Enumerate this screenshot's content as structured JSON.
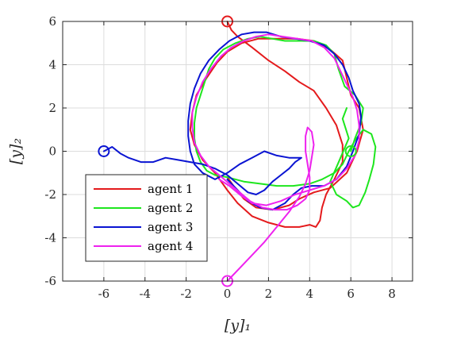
{
  "chart_data": {
    "type": "line",
    "title": "",
    "xlabel": "[y]₁",
    "ylabel": "[y]₂",
    "xlim": [
      -8,
      9
    ],
    "ylim": [
      -6,
      6
    ],
    "x_ticks": [
      -6,
      -4,
      -2,
      0,
      2,
      4,
      6,
      8
    ],
    "y_ticks": [
      -6,
      -4,
      -2,
      0,
      2,
      4,
      6
    ],
    "grid": true,
    "legend_position": "bottom-left",
    "markers": [
      {
        "x": 0,
        "y": 6,
        "color": "#e41a1c"
      },
      {
        "x": 6,
        "y": 0,
        "color": "#1ee61e"
      },
      {
        "x": -6,
        "y": 0,
        "color": "#0a14d2"
      },
      {
        "x": 0,
        "y": -6,
        "color": "#ee22ee"
      }
    ],
    "series": [
      {
        "name": "agent 1",
        "color": "#e41a1c",
        "points": [
          [
            0,
            6
          ],
          [
            0.2,
            5.6
          ],
          [
            0.5,
            5.3
          ],
          [
            1.2,
            4.8
          ],
          [
            2.0,
            4.2
          ],
          [
            2.8,
            3.7
          ],
          [
            3.5,
            3.2
          ],
          [
            4.2,
            2.8
          ],
          [
            4.8,
            2.0
          ],
          [
            5.3,
            1.2
          ],
          [
            5.6,
            0.3
          ],
          [
            5.6,
            -0.5
          ],
          [
            5.2,
            -1.3
          ],
          [
            4.8,
            -2.0
          ],
          [
            4.6,
            -2.6
          ],
          [
            4.5,
            -3.2
          ],
          [
            4.3,
            -3.5
          ],
          [
            4.0,
            -3.4
          ],
          [
            3.5,
            -3.5
          ],
          [
            2.8,
            -3.5
          ],
          [
            2.0,
            -3.3
          ],
          [
            1.2,
            -3.0
          ],
          [
            0.5,
            -2.4
          ],
          [
            0,
            -1.8
          ],
          [
            -0.6,
            -1.0
          ],
          [
            -1.2,
            -0.4
          ],
          [
            -1.6,
            0.3
          ],
          [
            -1.8,
            1.0
          ],
          [
            -1.7,
            1.8
          ],
          [
            -1.5,
            2.6
          ],
          [
            -1.0,
            3.4
          ],
          [
            -0.5,
            4.1
          ],
          [
            0,
            4.6
          ],
          [
            0.7,
            5.0
          ],
          [
            1.5,
            5.2
          ],
          [
            2.5,
            5.2
          ],
          [
            3.4,
            5.2
          ],
          [
            4.2,
            5.1
          ],
          [
            5.0,
            4.7
          ],
          [
            5.6,
            4.2
          ],
          [
            5.8,
            3.4
          ],
          [
            6.0,
            2.6
          ],
          [
            6.4,
            2.0
          ],
          [
            6.6,
            1.0
          ],
          [
            6.3,
            0
          ],
          [
            5.8,
            -1.0
          ],
          [
            5.0,
            -1.7
          ],
          [
            4.2,
            -1.9
          ],
          [
            3.5,
            -2.2
          ],
          [
            3.0,
            -2.5
          ],
          [
            2.2,
            -2.7
          ],
          [
            1.4,
            -2.6
          ],
          [
            0.8,
            -2.2
          ],
          [
            0.3,
            -1.6
          ],
          [
            0,
            -1.2
          ]
        ]
      },
      {
        "name": "agent 2",
        "color": "#1ee61e",
        "points": [
          [
            6,
            0
          ],
          [
            6.2,
            0.6
          ],
          [
            6.5,
            1.3
          ],
          [
            6.6,
            2.0
          ],
          [
            6.2,
            2.6
          ],
          [
            5.7,
            3.0
          ],
          [
            5.4,
            3.8
          ],
          [
            5.2,
            4.5
          ],
          [
            4.8,
            4.9
          ],
          [
            4.2,
            5.1
          ],
          [
            3.5,
            5.1
          ],
          [
            2.8,
            5.1
          ],
          [
            2.2,
            5.2
          ],
          [
            1.6,
            5.3
          ],
          [
            1.0,
            5.2
          ],
          [
            0.4,
            5.0
          ],
          [
            -0.2,
            4.7
          ],
          [
            -0.6,
            4.3
          ],
          [
            -0.9,
            3.8
          ],
          [
            -1.1,
            3.2
          ],
          [
            -1.3,
            2.6
          ],
          [
            -1.5,
            2.0
          ],
          [
            -1.6,
            1.3
          ],
          [
            -1.6,
            0.6
          ],
          [
            -1.5,
            0
          ],
          [
            -1.3,
            -0.5
          ],
          [
            -1.0,
            -0.9
          ],
          [
            -0.6,
            -1.1
          ],
          [
            0,
            -1.2
          ],
          [
            0.8,
            -1.4
          ],
          [
            1.6,
            -1.5
          ],
          [
            2.4,
            -1.6
          ],
          [
            3.2,
            -1.6
          ],
          [
            4.0,
            -1.5
          ],
          [
            4.6,
            -1.3
          ],
          [
            5.2,
            -1.0
          ],
          [
            5.6,
            -0.6
          ],
          [
            5.9,
            0
          ],
          [
            6.2,
            0.5
          ],
          [
            6.6,
            1.0
          ],
          [
            7.0,
            0.8
          ],
          [
            7.2,
            0.2
          ],
          [
            7.1,
            -0.6
          ],
          [
            6.9,
            -1.3
          ],
          [
            6.7,
            -1.9
          ],
          [
            6.4,
            -2.5
          ],
          [
            6.1,
            -2.6
          ],
          [
            5.8,
            -2.3
          ],
          [
            5.3,
            -2.0
          ],
          [
            5.0,
            -1.4
          ],
          [
            5.5,
            -0.3
          ],
          [
            5.9,
            0.6
          ],
          [
            5.6,
            1.5
          ],
          [
            5.8,
            2.0
          ]
        ]
      },
      {
        "name": "agent 3",
        "color": "#0a14d2",
        "points": [
          [
            -6,
            0
          ],
          [
            -5.6,
            0.2
          ],
          [
            -5.2,
            -0.1
          ],
          [
            -4.8,
            -0.3
          ],
          [
            -4.2,
            -0.5
          ],
          [
            -3.6,
            -0.5
          ],
          [
            -3.0,
            -0.3
          ],
          [
            -2.4,
            -0.4
          ],
          [
            -1.8,
            -0.5
          ],
          [
            -1.2,
            -0.6
          ],
          [
            -0.6,
            -0.8
          ],
          [
            0,
            -1.1
          ],
          [
            0.5,
            -1.5
          ],
          [
            1.0,
            -1.9
          ],
          [
            1.4,
            -2.0
          ],
          [
            1.8,
            -1.8
          ],
          [
            2.2,
            -1.4
          ],
          [
            2.6,
            -1.1
          ],
          [
            3.0,
            -0.8
          ],
          [
            3.3,
            -0.5
          ],
          [
            3.6,
            -0.3
          ],
          [
            3.0,
            -0.3
          ],
          [
            2.4,
            -0.2
          ],
          [
            1.8,
            0
          ],
          [
            1.2,
            -0.3
          ],
          [
            0.6,
            -0.6
          ],
          [
            0,
            -1.0
          ],
          [
            -0.6,
            -1.3
          ],
          [
            -1.2,
            -1.0
          ],
          [
            -1.6,
            -0.6
          ],
          [
            -1.8,
            0
          ],
          [
            -1.9,
            0.7
          ],
          [
            -1.9,
            1.4
          ],
          [
            -1.8,
            2.2
          ],
          [
            -1.6,
            2.9
          ],
          [
            -1.3,
            3.6
          ],
          [
            -0.9,
            4.2
          ],
          [
            -0.4,
            4.7
          ],
          [
            0.1,
            5.1
          ],
          [
            0.7,
            5.4
          ],
          [
            1.3,
            5.5
          ],
          [
            1.9,
            5.5
          ],
          [
            2.6,
            5.3
          ],
          [
            3.3,
            5.2
          ],
          [
            4.0,
            5.1
          ],
          [
            4.7,
            4.9
          ],
          [
            5.2,
            4.5
          ],
          [
            5.6,
            4.0
          ],
          [
            5.9,
            3.4
          ],
          [
            6.1,
            2.8
          ],
          [
            6.4,
            2.2
          ],
          [
            6.5,
            1.6
          ],
          [
            6.4,
            0.8
          ],
          [
            6.1,
            0
          ],
          [
            5.8,
            -0.7
          ],
          [
            5.3,
            -1.3
          ],
          [
            4.7,
            -1.6
          ],
          [
            4.1,
            -1.6
          ],
          [
            3.6,
            -1.7
          ],
          [
            3.2,
            -2.0
          ],
          [
            2.8,
            -2.4
          ],
          [
            2.2,
            -2.7
          ],
          [
            1.6,
            -2.6
          ],
          [
            1.0,
            -2.3
          ],
          [
            0.5,
            -1.8
          ],
          [
            0,
            -1.3
          ]
        ]
      },
      {
        "name": "agent 4",
        "color": "#ee22ee",
        "points": [
          [
            0,
            -6
          ],
          [
            0.6,
            -5.4
          ],
          [
            1.2,
            -4.8
          ],
          [
            1.8,
            -4.2
          ],
          [
            2.4,
            -3.5
          ],
          [
            3.0,
            -2.8
          ],
          [
            3.5,
            -2.1
          ],
          [
            3.8,
            -1.5
          ],
          [
            4.0,
            -0.9
          ],
          [
            4.1,
            -0.3
          ],
          [
            4.2,
            0.3
          ],
          [
            4.1,
            0.9
          ],
          [
            3.9,
            1.1
          ],
          [
            3.8,
            0.7
          ],
          [
            3.8,
            0
          ],
          [
            3.9,
            -0.6
          ],
          [
            4.0,
            -1.2
          ],
          [
            4.0,
            -1.8
          ],
          [
            3.8,
            -2.2
          ],
          [
            3.4,
            -2.5
          ],
          [
            2.9,
            -2.7
          ],
          [
            2.3,
            -2.7
          ],
          [
            1.7,
            -2.6
          ],
          [
            1.1,
            -2.3
          ],
          [
            0.6,
            -1.9
          ],
          [
            0.1,
            -1.5
          ],
          [
            -0.4,
            -1.1
          ],
          [
            -0.9,
            -0.7
          ],
          [
            -1.3,
            -0.2
          ],
          [
            -1.6,
            0.4
          ],
          [
            -1.7,
            1.1
          ],
          [
            -1.7,
            1.8
          ],
          [
            -1.5,
            2.5
          ],
          [
            -1.2,
            3.2
          ],
          [
            -0.8,
            3.8
          ],
          [
            -0.3,
            4.4
          ],
          [
            0.2,
            4.8
          ],
          [
            0.8,
            5.1
          ],
          [
            1.4,
            5.3
          ],
          [
            2.0,
            5.4
          ],
          [
            2.7,
            5.3
          ],
          [
            3.4,
            5.2
          ],
          [
            4.1,
            5.1
          ],
          [
            4.7,
            4.8
          ],
          [
            5.2,
            4.3
          ],
          [
            5.5,
            3.7
          ],
          [
            5.8,
            3.1
          ],
          [
            6.1,
            2.5
          ],
          [
            6.3,
            1.9
          ],
          [
            6.4,
            1.2
          ],
          [
            6.4,
            0.5
          ],
          [
            6.2,
            -0.2
          ],
          [
            5.8,
            -0.8
          ],
          [
            5.3,
            -1.3
          ],
          [
            4.7,
            -1.6
          ],
          [
            4.0,
            -1.8
          ],
          [
            3.3,
            -2.0
          ],
          [
            2.6,
            -2.3
          ],
          [
            1.9,
            -2.5
          ],
          [
            1.2,
            -2.4
          ],
          [
            0.6,
            -2.0
          ],
          [
            0.1,
            -1.6
          ],
          [
            -0.4,
            -1.3
          ]
        ]
      }
    ]
  }
}
